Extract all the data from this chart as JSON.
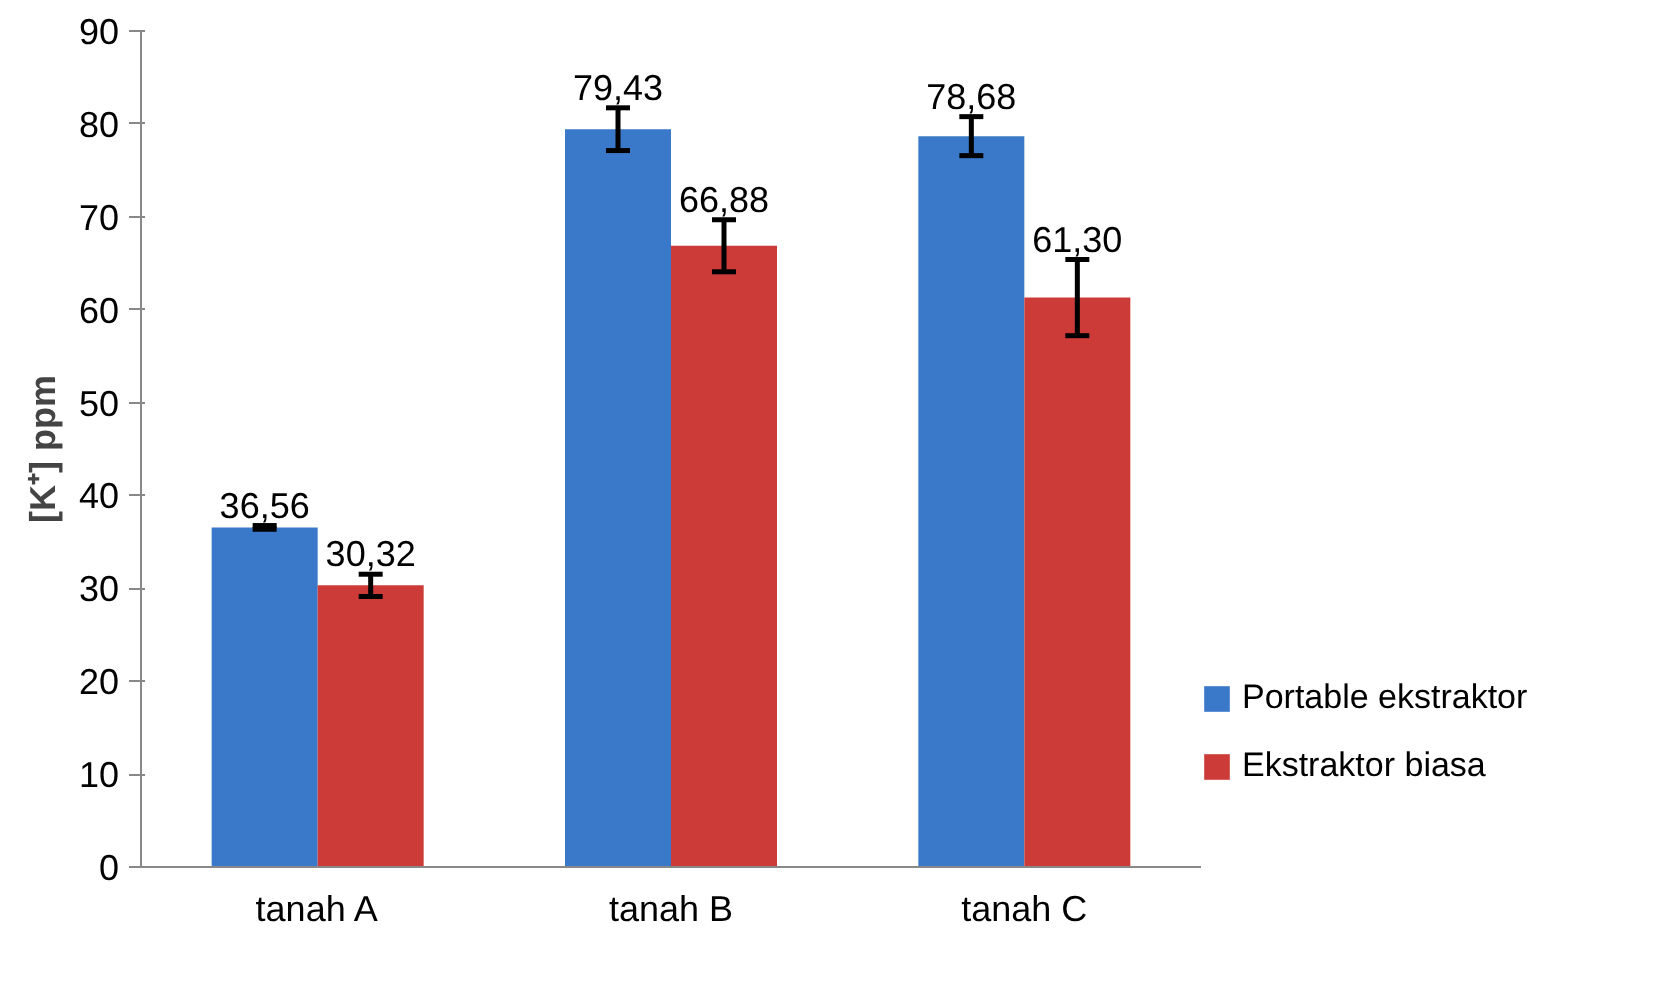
{
  "chart_data": {
    "type": "bar",
    "ylabel": "[K⁺] ppm",
    "categories": [
      "tanah A",
      "tanah B",
      "tanah C"
    ],
    "series": [
      {
        "name": "Portable ekstraktor",
        "color": "#3a78c9",
        "values": [
          36.56,
          79.43,
          78.68
        ],
        "errors": [
          0.2,
          2.3,
          2.1
        ],
        "value_labels": [
          "36,56",
          "79,43",
          "78,68"
        ]
      },
      {
        "name": "Ekstraktor biasa",
        "color": "#cc3b37",
        "values": [
          30.32,
          66.88,
          61.3
        ],
        "errors": [
          1.2,
          2.8,
          4.1
        ],
        "value_labels": [
          "30,32",
          "66,88",
          "61,30"
        ]
      }
    ],
    "ylim": [
      0,
      90
    ],
    "yticks": [
      0,
      10,
      20,
      30,
      40,
      50,
      60,
      70,
      80,
      90
    ],
    "grid": false,
    "legend": "right"
  }
}
